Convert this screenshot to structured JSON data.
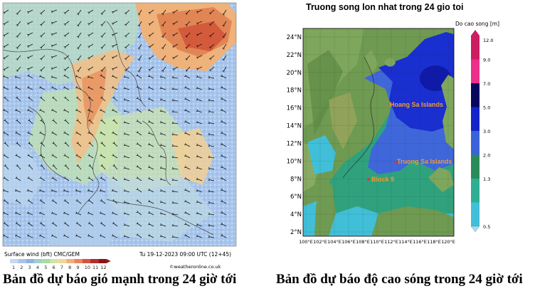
{
  "wind_map": {
    "footer_left": "Surface wind (bft)   CMC/GEM",
    "footer_right": "Tu 19-12-2023 09:00 UTC (12+45)",
    "credit": "©weatheronline.co.uk",
    "scale_labels": [
      "1",
      "2",
      "3",
      "4",
      "5",
      "6",
      "7",
      "8",
      "9",
      "10",
      "11",
      "12"
    ],
    "scale_colors": [
      "#c8d8f0",
      "#a9c4ea",
      "#8fb2e2",
      "#9fd0c8",
      "#a8dba0",
      "#cde6a2",
      "#f2d79a",
      "#f0b078",
      "#e98657",
      "#d7533a",
      "#b52c2c",
      "#8a1414"
    ],
    "caption": "Bản đồ dự báo gió mạnh trong 24 giờ tới"
  },
  "wave_map": {
    "title": "Truong song lon nhat trong 24 gio toi",
    "legend_title": "Do cao song [m]",
    "legend_ticks": [
      "12.0",
      "9.0",
      "7.0",
      "5.0",
      "3.0",
      "2.0",
      "1.3",
      "0.5"
    ],
    "legend_colors": [
      "#cc1d62",
      "#ec2f8a",
      "#09065e",
      "#1224c9",
      "#3b62d8",
      "#2a8a5a",
      "#2fae93",
      "#41bfd8"
    ],
    "lat_labels": [
      "24°N",
      "22°N",
      "20°N",
      "18°N",
      "16°N",
      "14°N",
      "12°N",
      "10°N",
      "8°N",
      "6°N",
      "4°N",
      "2°N"
    ],
    "lon_labels": [
      "100°E",
      "102°E",
      "104°E",
      "106°E",
      "108°E",
      "110°E",
      "112°E",
      "114°E",
      "116°E",
      "118°E",
      "120°E"
    ],
    "islands": [
      {
        "name": "Hoang Sa Islands"
      },
      {
        "name": "Truong Sa Islands"
      },
      {
        "name": "Block 9"
      }
    ],
    "colors": {
      "land": "#6f9a52",
      "deep": "#1a2fd0",
      "mid": "#3f67d9",
      "shallow": "#2fa27d",
      "coast": "#3fc0d5",
      "darkest": "#0f1aa8"
    },
    "caption": "Bản đồ dự báo độ cao sóng trong 24 giờ tới"
  }
}
